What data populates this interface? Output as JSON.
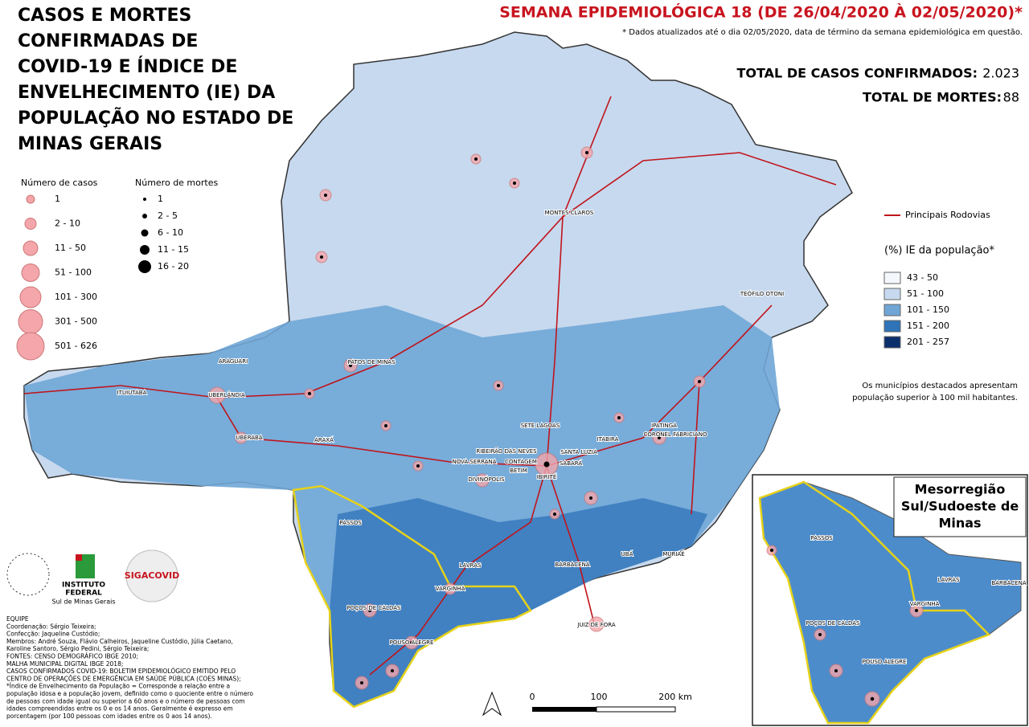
{
  "title_lines": [
    "CASOS E MORTES",
    "CONFIRMADAS DE",
    "COVID-19 E ÍNDICE DE",
    "ENVELHECIMENTO (IE) DA",
    "POPULAÇÃO NO ESTADO DE",
    "MINAS GERAIS"
  ],
  "header": {
    "week": "SEMANA EPIDEMIOLÓGICA 18 (DE 26/04/2020 À 02/05/2020)*",
    "note": "* Dados atualizados até o dia 02/05/2020, data de término da semana epidemiológica em questão."
  },
  "totals": [
    {
      "label": "TOTAL DE CASOS CONFIRMADOS:",
      "value": "2.023"
    },
    {
      "label": "TOTAL DE MORTES:",
      "value": "88"
    }
  ],
  "legend_cases": {
    "title": "Número de casos",
    "items": [
      "1",
      "2 - 10",
      "11 - 50",
      "51 - 100",
      "101 - 300",
      "301 - 500",
      "501 - 626"
    ]
  },
  "legend_deaths": {
    "title": "Número de mortes",
    "items": [
      "1",
      "2 - 5",
      "6 - 10",
      "11 - 15",
      "16 - 20"
    ]
  },
  "roads_legend": "Principais Rodovias",
  "ie_legend": {
    "title": "(%) IE da população*",
    "items": [
      {
        "label": "43 - 50",
        "color": "#f4f7fc"
      },
      {
        "label": "51 - 100",
        "color": "#c6d9ef"
      },
      {
        "label": "101 - 150",
        "color": "#6fa6d6"
      },
      {
        "label": "151 - 200",
        "color": "#2f73b8"
      },
      {
        "label": "201 - 257",
        "color": "#0b2f6b"
      }
    ]
  },
  "highlight_note": [
    "Os municípios destacados apresentam",
    "população superior à 100 mil habitantes."
  ],
  "inset_title": [
    "Mesorregião",
    "Sul/Sudoeste de",
    "Minas"
  ],
  "cities": [
    "MONTES CLAROS",
    "TEÓFILO OTONI",
    "PATOS DE MINAS",
    "ARAGUARI",
    "ITUIUTABA",
    "UBERLÂNDIA",
    "UBERABA",
    "ARAXÁ",
    "SETE LAGOAS",
    "RIBEIRÃO DAS NEVES",
    "SANTA LUZIA",
    "NOVA SERRANA",
    "CONTAGEM",
    "BETIM",
    "SABARÁ",
    "IBIRITÉ",
    "DIVINÓPOLIS",
    "IPATINGA",
    "CORONEL FABRICIANO",
    "ITABIRA",
    "PASSOS",
    "LAVRAS",
    "BARBACENA",
    "UBÁ",
    "MURIAÉ",
    "VARGINHA",
    "POÇOS DE CALDAS",
    "JUIZ DE FORA",
    "POUSO ALEGRE"
  ],
  "inset_cities": [
    "PASSOS",
    "LAVRAS",
    "BARBACENA",
    "VARGINHA",
    "POÇOS DE CALDAS",
    "POUSO ALEGRE"
  ],
  "scale": [
    "0",
    "100",
    "200 km"
  ],
  "logos": [
    "INSTITUTO",
    "FEDERAL",
    "Sul de Minas Gerais",
    "SIGACOVID"
  ],
  "credits": [
    "EQUIPE",
    "Coordenação: Sérgio Teixeira;",
    "Confecção: Jaqueline Custódio;",
    "Membros: André Souza, Flávio Calheiros, Jaqueline Custódio, Júlia Caetano,",
    "Karoline Santoro, Sérgio Pedini, Sérgio Teixeira;",
    "FONTES: CENSO DEMOGRÁFICO IBGE 2010;",
    "MALHA MUNICIPAL DIGITAL IBGE 2018;",
    "CASOS CONFIRMADOS COVID-19: BOLETIM EPIDEMIOLÓGICO EMITIDO PELO",
    "CENTRO DE OPERAÇÕES DE EMERGÊNCIA EM SAÚDE PÚBLICA (COES MINAS);",
    "*Índice de Envelhecimento da População = Corresponde a relação entre a",
    "população idosa e a população jovem, definido como o quociente entre o número",
    "de pessoas com idade igual ou superior a 60 anos e o número de pessoas com",
    "idades compreendidas entre os 0 e os 14 anos. Geralmente é expresso em",
    "porcentagem (por 100 pessoas com idades entre os 0 aos 14 anos)."
  ]
}
